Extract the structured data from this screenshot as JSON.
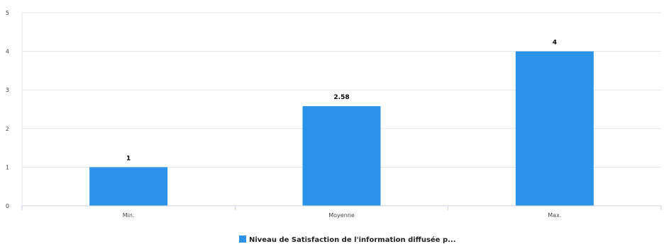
{
  "chart_data": {
    "type": "bar",
    "categories": [
      "Min.",
      "Moyenne",
      "Max."
    ],
    "series": [
      {
        "name": "Niveau de Satisfaction de l'information diffusée p...",
        "values": [
          1,
          2.58,
          4
        ],
        "labels": [
          "1",
          "2.58",
          "4"
        ]
      }
    ],
    "yticks": [
      "0",
      "1",
      "2",
      "3",
      "4",
      "5"
    ],
    "ylim": [
      0,
      5
    ],
    "grid": true,
    "legend_position": "bottom-center",
    "colors": {
      "bar": "#2a93e8",
      "grid": "#e3e6ea",
      "axis": "#c9d2dc"
    }
  }
}
